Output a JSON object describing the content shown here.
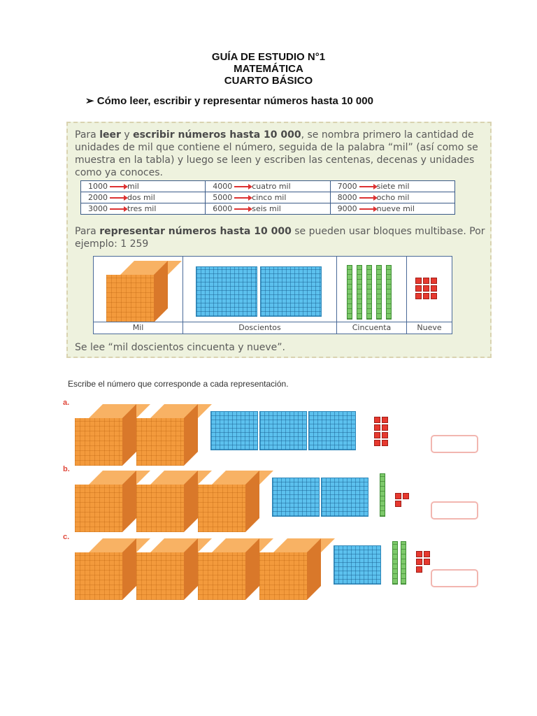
{
  "title": {
    "line1": "GUÍA DE ESTUDIO N°1",
    "line2": "MATEMÁTICA",
    "line3": "CUARTO BÁSICO"
  },
  "heading": {
    "bullet": "➢",
    "text": "Cómo leer, escribir y representar números hasta 10 000"
  },
  "panel": {
    "para1_pre": "Para ",
    "para1_b1": "leer",
    "para1_mid1": " y ",
    "para1_b2": "escribir números hasta 10 000",
    "para1_rest": ", se nombra primero la cantidad de unidades de mil que contiene el número, seguida de la palabra “mil” (así como se muestra en la tabla) y luego se leen y escriben las centenas, decenas y unidades como ya conoces.",
    "table": [
      [
        {
          "num": "1000",
          "word": "mil"
        },
        {
          "num": "4000",
          "word": "cuatro mil"
        },
        {
          "num": "7000",
          "word": "siete mil"
        }
      ],
      [
        {
          "num": "2000",
          "word": "dos mil"
        },
        {
          "num": "5000",
          "word": "cinco mil"
        },
        {
          "num": "8000",
          "word": "ocho mil"
        }
      ],
      [
        {
          "num": "3000",
          "word": "tres mil"
        },
        {
          "num": "6000",
          "word": "seis mil"
        },
        {
          "num": "9000",
          "word": "nueve mil"
        }
      ]
    ],
    "para2_pre": "Para ",
    "para2_b": "representar números hasta 10 000",
    "para2_rest": " se pueden usar bloques multibase. Por ejemplo: 1 259",
    "captions": [
      "Mil",
      "Doscientos",
      "Cincuenta",
      "Nueve"
    ],
    "para3": "Se lee “mil doscientos cincuenta y nueve”."
  },
  "exercise": {
    "instruction": "Escribe el número que corresponde a cada representación.",
    "items": [
      {
        "label": "a.",
        "thousands": 2,
        "hundreds": 3,
        "tens": 0,
        "units": 8
      },
      {
        "label": "b.",
        "thousands": 3,
        "hundreds": 2,
        "tens": 1,
        "units": 3
      },
      {
        "label": "c.",
        "thousands": 4,
        "hundreds": 1,
        "tens": 2,
        "units": 5
      }
    ]
  },
  "colors": {
    "thousand_block": "#f39a3c",
    "hundred_flat": "#5cc1ee",
    "ten_rod": "#7dc96a",
    "unit_cube": "#e6392f",
    "label": "#e0483b",
    "panel_bg": "#eef2de"
  }
}
